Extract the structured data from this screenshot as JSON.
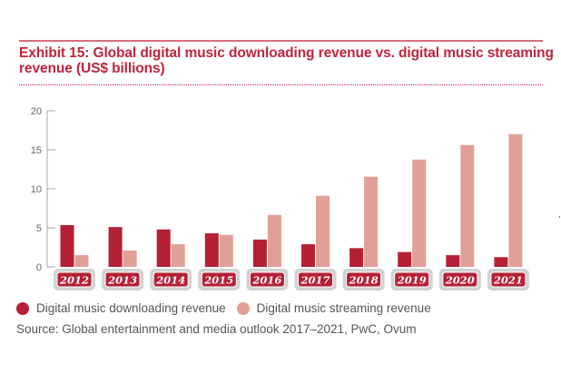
{
  "title": "Exhibit 15: Global digital music downloading revenue vs. digital music streaming revenue (US$ billions)",
  "colors": {
    "title": "#c0243c",
    "downloading": "#b52035",
    "streaming": "#e0a096",
    "label_bg": "#b52035",
    "label_border": "#d2d2d2",
    "axis": "#aaaaaa"
  },
  "legend": [
    {
      "label": "Digital music downloading revenue",
      "series": "downloading"
    },
    {
      "label": "Digital music streaming revenue",
      "series": "streaming"
    }
  ],
  "source": "Source: Global entertainment and media outlook 2017–2021, PwC, Ovum",
  "chart_data": {
    "type": "bar",
    "title": "Exhibit 15: Global digital music downloading revenue vs. digital music streaming revenue (US$ billions)",
    "xlabel": "",
    "ylabel": "",
    "categories": [
      "2012",
      "2013",
      "2014",
      "2015",
      "2016",
      "2017",
      "2018",
      "2019",
      "2020",
      "2021"
    ],
    "series": [
      {
        "name": "Digital music downloading revenue",
        "key": "downloading",
        "values": [
          5.35,
          5.1,
          4.8,
          4.3,
          3.5,
          2.9,
          2.4,
          1.9,
          1.5,
          1.25
        ]
      },
      {
        "name": "Digital music streaming revenue",
        "key": "streaming",
        "values": [
          1.5,
          2.1,
          2.9,
          4.1,
          6.65,
          9.1,
          11.55,
          13.75,
          15.6,
          17.0
        ]
      }
    ],
    "ylim": [
      0,
      20
    ],
    "yticks": [
      0,
      5,
      10,
      15,
      20
    ],
    "grid": false,
    "legend_position": "bottom-left"
  }
}
